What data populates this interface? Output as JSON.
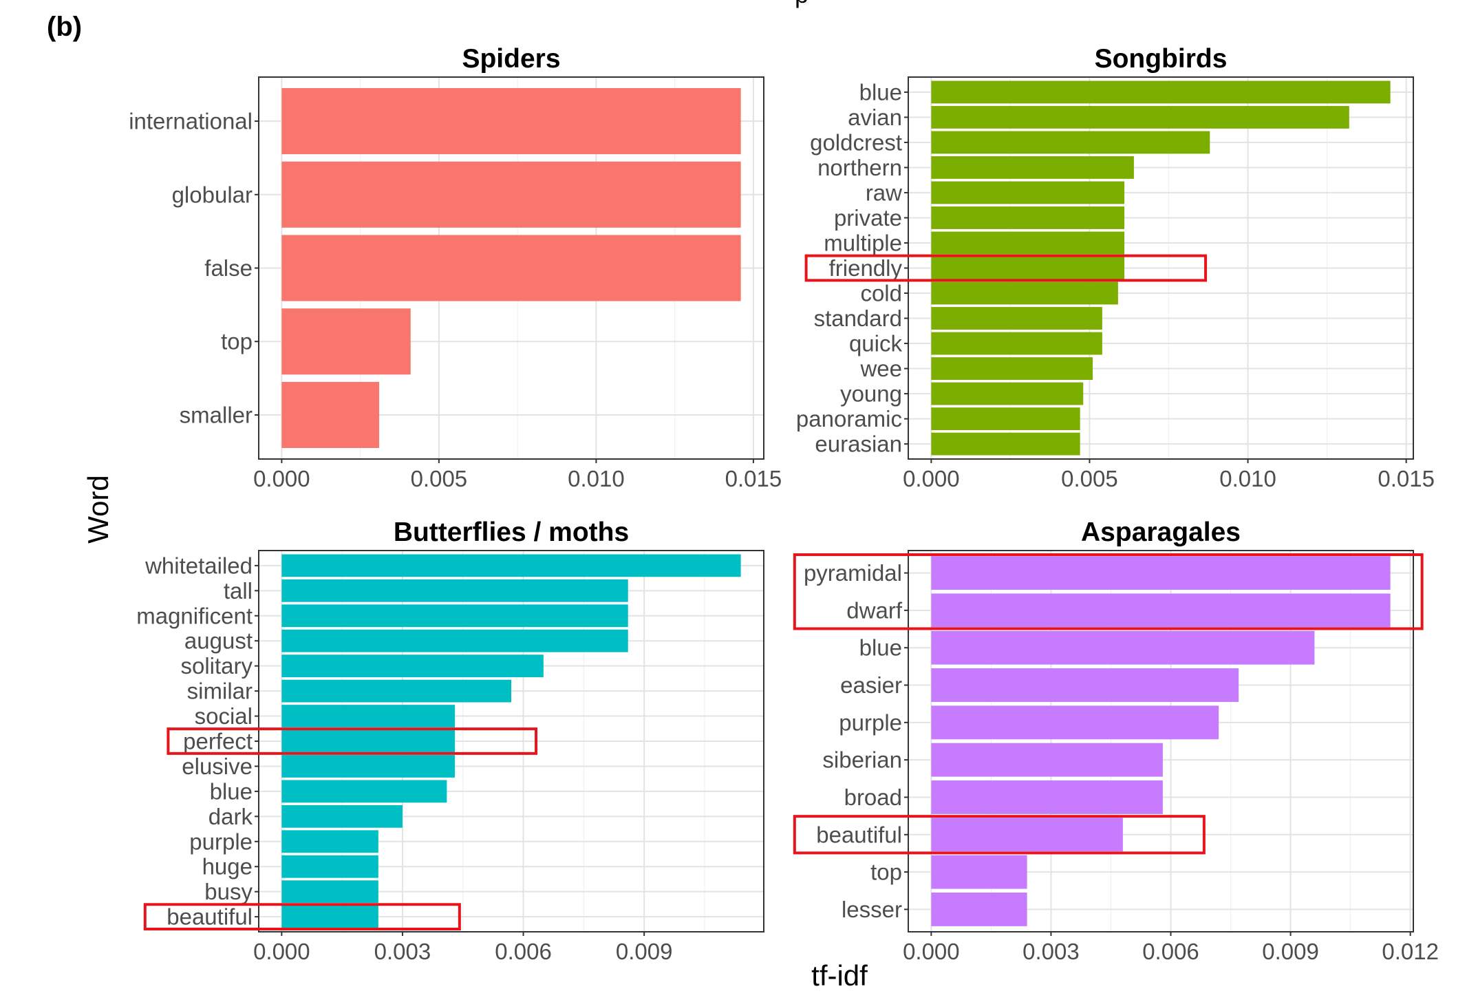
{
  "figure": {
    "panel_label": "(b)",
    "top_cut_text": "p",
    "xlabel": "tf-idf",
    "ylabel": "Word"
  },
  "chart_data": [
    {
      "type": "bar",
      "orientation": "horizontal",
      "title": "Spiders",
      "color": "#F8766D",
      "categories": [
        "international",
        "globular",
        "false",
        "top",
        "smaller"
      ],
      "values": [
        0.0146,
        0.0146,
        0.0146,
        0.0041,
        0.0031
      ],
      "xlim": [
        -0.00073,
        0.01533
      ],
      "xticks": [
        0.0,
        0.005,
        0.01,
        0.015
      ],
      "xtick_labels": [
        "0.000",
        "0.005",
        "0.010",
        "0.015"
      ],
      "grid": true,
      "highlighted": []
    },
    {
      "type": "bar",
      "orientation": "horizontal",
      "title": "Songbirds",
      "color": "#7CAE00",
      "categories": [
        "blue",
        "avian",
        "goldcrest",
        "northern",
        "raw",
        "private",
        "multiple",
        "friendly",
        "cold",
        "standard",
        "quick",
        "wee",
        "young",
        "panoramic",
        "eurasian"
      ],
      "values": [
        0.0145,
        0.0132,
        0.0088,
        0.0064,
        0.0061,
        0.0061,
        0.0061,
        0.0061,
        0.0059,
        0.0054,
        0.0054,
        0.0051,
        0.0048,
        0.0047,
        0.0047
      ],
      "xlim": [
        -0.000725,
        0.015225
      ],
      "xticks": [
        0.0,
        0.005,
        0.01,
        0.015
      ],
      "xtick_labels": [
        "0.000",
        "0.005",
        "0.010",
        "0.015"
      ],
      "grid": true,
      "highlighted": [
        "friendly"
      ]
    },
    {
      "type": "bar",
      "orientation": "horizontal",
      "title": "Butterflies / moths",
      "color": "#00BFC4",
      "categories": [
        "whitetailed",
        "tall",
        "magnificent",
        "august",
        "solitary",
        "similar",
        "social",
        "perfect",
        "elusive",
        "blue",
        "dark",
        "purple",
        "huge",
        "busy",
        "beautiful"
      ],
      "values": [
        0.0114,
        0.0086,
        0.0086,
        0.0086,
        0.0065,
        0.0057,
        0.0043,
        0.0043,
        0.0043,
        0.0041,
        0.003,
        0.0024,
        0.0024,
        0.0024,
        0.0024
      ],
      "xlim": [
        -0.00057,
        0.01197
      ],
      "xticks": [
        0.0,
        0.003,
        0.006,
        0.009
      ],
      "xtick_labels": [
        "0.000",
        "0.003",
        "0.006",
        "0.009"
      ],
      "grid": true,
      "highlighted": [
        "perfect",
        "beautiful"
      ]
    },
    {
      "type": "bar",
      "orientation": "horizontal",
      "title": "Asparagales",
      "color": "#C77CFF",
      "categories": [
        "pyramidal",
        "dwarf",
        "blue",
        "easier",
        "purple",
        "siberian",
        "broad",
        "beautiful",
        "top",
        "lesser"
      ],
      "values": [
        0.0115,
        0.0115,
        0.0096,
        0.0077,
        0.0072,
        0.0058,
        0.0058,
        0.0048,
        0.0024,
        0.0024
      ],
      "xlim": [
        -0.000575,
        0.012075
      ],
      "xticks": [
        0.0,
        0.003,
        0.006,
        0.009,
        0.012
      ],
      "xtick_labels": [
        "0.000",
        "0.003",
        "0.006",
        "0.009",
        "0.012"
      ],
      "grid": true,
      "highlighted": [
        "pyramidal",
        "dwarf",
        "beautiful"
      ]
    }
  ]
}
